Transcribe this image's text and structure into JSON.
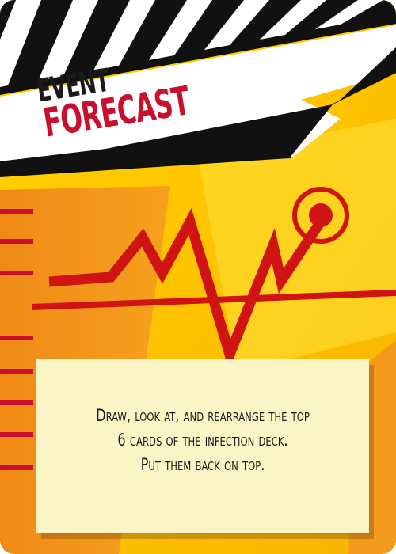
{
  "card": {
    "type_label": "EVENT",
    "name": "FORECAST",
    "rule_text": [
      "Draw, look at, and rearrange the top",
      "6 cards of the infection deck.",
      "Put them back on top."
    ]
  },
  "colors": {
    "title_red": "#c8102e",
    "chart_red": "#d01414",
    "background_yellow": "#ffd400",
    "background_orange": "#f28c1a",
    "panel_cream": "#fbf5c6",
    "clapper_black": "#111111"
  },
  "icons": [
    "clapperboard-stripes",
    "forecast-chart-graphic",
    "target-circle-icon"
  ]
}
